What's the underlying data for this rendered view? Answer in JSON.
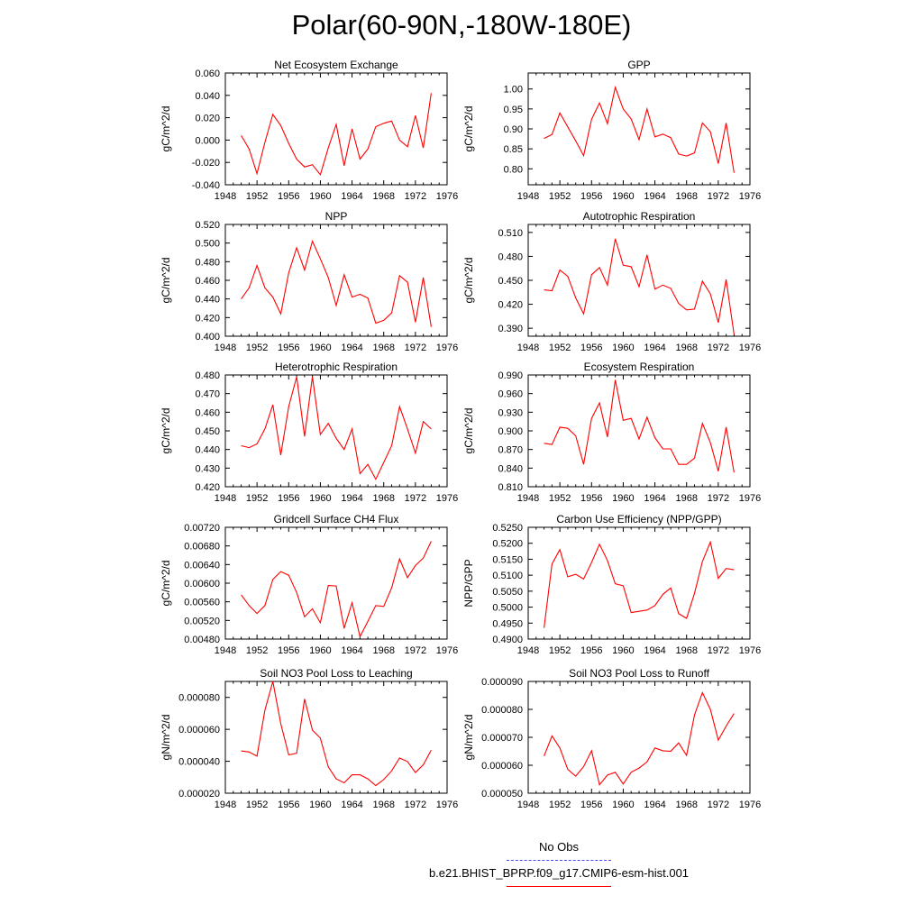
{
  "figure": {
    "title": "Polar(60-90N,-180W-180E)",
    "legend": [
      {
        "label": "No Obs",
        "color": "#4a4aff",
        "dash": true
      },
      {
        "label": "b.e21.BHIST_BPRP.f09_g17.CMIP6-esm-hist.001",
        "color": "#ff0000",
        "dash": false
      }
    ]
  },
  "chart_data": [
    {
      "type": "line",
      "title": "Net Ecosystem Exchange",
      "ylabel": "gC/m^2/d",
      "xlim": [
        1948,
        1976
      ],
      "xticks": [
        "1948",
        "1952",
        "1956",
        "1960",
        "1964",
        "1968",
        "1972",
        "1976"
      ],
      "ylim": [
        -0.04,
        0.06
      ],
      "yticks": [
        "-0.040",
        "-0.020",
        "0.000",
        "0.020",
        "0.040",
        "0.060"
      ],
      "x": [
        1950,
        1951,
        1952,
        1953,
        1954,
        1955,
        1956,
        1957,
        1958,
        1959,
        1960,
        1961,
        1962,
        1963,
        1964,
        1965,
        1966,
        1967,
        1968,
        1969,
        1970,
        1971,
        1972,
        1973,
        1974
      ],
      "series": [
        {
          "color": "#ff0000",
          "values": [
            0.004,
            -0.008,
            -0.03,
            -0.002,
            0.023,
            0.013,
            -0.003,
            -0.017,
            -0.024,
            -0.022,
            -0.031,
            -0.007,
            0.014,
            -0.023,
            0.01,
            -0.017,
            -0.008,
            0.012,
            0.015,
            0.017,
            0.0,
            -0.006,
            0.022,
            -0.007,
            0.042
          ]
        }
      ]
    },
    {
      "type": "line",
      "title": "GPP",
      "ylabel": "gC/m^2/d",
      "xlim": [
        1948,
        1976
      ],
      "xticks": [
        "1948",
        "1952",
        "1956",
        "1960",
        "1964",
        "1968",
        "1972",
        "1976"
      ],
      "ylim": [
        0.76,
        1.04
      ],
      "yticks": [
        "0.80",
        "0.85",
        "0.90",
        "0.95",
        "1.00"
      ],
      "x": [
        1950,
        1951,
        1952,
        1953,
        1954,
        1955,
        1956,
        1957,
        1958,
        1959,
        1960,
        1961,
        1962,
        1963,
        1964,
        1965,
        1966,
        1967,
        1968,
        1969,
        1970,
        1971,
        1972,
        1973,
        1974
      ],
      "series": [
        {
          "color": "#ff0000",
          "values": [
            0.876,
            0.886,
            0.94,
            0.905,
            0.87,
            0.833,
            0.924,
            0.965,
            0.913,
            1.004,
            0.95,
            0.925,
            0.873,
            0.95,
            0.88,
            0.887,
            0.878,
            0.837,
            0.832,
            0.84,
            0.915,
            0.893,
            0.813,
            0.915,
            0.79
          ]
        }
      ]
    },
    {
      "type": "line",
      "title": "NPP",
      "ylabel": "gC/m^2/d",
      "xlim": [
        1948,
        1976
      ],
      "xticks": [
        "1948",
        "1952",
        "1956",
        "1960",
        "1964",
        "1968",
        "1972",
        "1976"
      ],
      "ylim": [
        0.4,
        0.52
      ],
      "yticks": [
        "0.400",
        "0.420",
        "0.440",
        "0.460",
        "0.480",
        "0.500",
        "0.520"
      ],
      "x": [
        1950,
        1951,
        1952,
        1953,
        1954,
        1955,
        1956,
        1957,
        1958,
        1959,
        1960,
        1961,
        1962,
        1963,
        1964,
        1965,
        1966,
        1967,
        1968,
        1969,
        1970,
        1971,
        1972,
        1973,
        1974
      ],
      "series": [
        {
          "color": "#ff0000",
          "values": [
            0.44,
            0.452,
            0.476,
            0.452,
            0.442,
            0.424,
            0.468,
            0.495,
            0.471,
            0.502,
            0.483,
            0.463,
            0.433,
            0.466,
            0.442,
            0.445,
            0.441,
            0.414,
            0.417,
            0.425,
            0.465,
            0.458,
            0.415,
            0.463,
            0.41
          ]
        }
      ]
    },
    {
      "type": "line",
      "title": "Autotrophic Respiration",
      "ylabel": "gC/m^2/d",
      "xlim": [
        1948,
        1976
      ],
      "xticks": [
        "1948",
        "1952",
        "1956",
        "1960",
        "1964",
        "1968",
        "1972",
        "1976"
      ],
      "ylim": [
        0.38,
        0.52
      ],
      "yticks": [
        "0.390",
        "0.420",
        "0.450",
        "0.480",
        "0.510"
      ],
      "x": [
        1950,
        1951,
        1952,
        1953,
        1954,
        1955,
        1956,
        1957,
        1958,
        1959,
        1960,
        1961,
        1962,
        1963,
        1964,
        1965,
        1966,
        1967,
        1968,
        1969,
        1970,
        1971,
        1972,
        1973,
        1974
      ],
      "series": [
        {
          "color": "#ff0000",
          "values": [
            0.438,
            0.437,
            0.463,
            0.455,
            0.428,
            0.408,
            0.457,
            0.466,
            0.444,
            0.502,
            0.469,
            0.467,
            0.442,
            0.482,
            0.439,
            0.444,
            0.44,
            0.421,
            0.413,
            0.414,
            0.449,
            0.433,
            0.397,
            0.451,
            0.382
          ]
        }
      ]
    },
    {
      "type": "line",
      "title": "Heterotrophic Respiration",
      "ylabel": "gC/m^2/d",
      "xlim": [
        1948,
        1976
      ],
      "xticks": [
        "1948",
        "1952",
        "1956",
        "1960",
        "1964",
        "1968",
        "1972",
        "1976"
      ],
      "ylim": [
        0.42,
        0.48
      ],
      "yticks": [
        "0.420",
        "0.430",
        "0.440",
        "0.450",
        "0.460",
        "0.470",
        "0.480"
      ],
      "x": [
        1950,
        1951,
        1952,
        1953,
        1954,
        1955,
        1956,
        1957,
        1958,
        1959,
        1960,
        1961,
        1962,
        1963,
        1964,
        1965,
        1966,
        1967,
        1968,
        1969,
        1970,
        1971,
        1972,
        1973,
        1974
      ],
      "series": [
        {
          "color": "#ff0000",
          "values": [
            0.442,
            0.441,
            0.443,
            0.451,
            0.464,
            0.437,
            0.463,
            0.479,
            0.447,
            0.479,
            0.448,
            0.454,
            0.446,
            0.44,
            0.451,
            0.427,
            0.432,
            0.424,
            0.433,
            0.442,
            0.463,
            0.451,
            0.438,
            0.455,
            0.451
          ]
        }
      ]
    },
    {
      "type": "line",
      "title": "Ecosystem Respiration",
      "ylabel": "gC/m^2/d",
      "xlim": [
        1948,
        1976
      ],
      "xticks": [
        "1948",
        "1952",
        "1956",
        "1960",
        "1964",
        "1968",
        "1972",
        "1976"
      ],
      "ylim": [
        0.81,
        0.99
      ],
      "yticks": [
        "0.810",
        "0.840",
        "0.870",
        "0.900",
        "0.930",
        "0.960",
        "0.990"
      ],
      "x": [
        1950,
        1951,
        1952,
        1953,
        1954,
        1955,
        1956,
        1957,
        1958,
        1959,
        1960,
        1961,
        1962,
        1963,
        1964,
        1965,
        1966,
        1967,
        1968,
        1969,
        1970,
        1971,
        1972,
        1973,
        1974
      ],
      "series": [
        {
          "color": "#ff0000",
          "values": [
            0.88,
            0.878,
            0.906,
            0.904,
            0.892,
            0.846,
            0.92,
            0.945,
            0.89,
            0.982,
            0.917,
            0.92,
            0.887,
            0.922,
            0.889,
            0.871,
            0.871,
            0.846,
            0.846,
            0.856,
            0.912,
            0.881,
            0.835,
            0.906,
            0.833
          ]
        }
      ]
    },
    {
      "type": "line",
      "title": "Gridcell Surface CH4 Flux",
      "ylabel": "gC/m^2/d",
      "xlim": [
        1948,
        1976
      ],
      "xticks": [
        "1948",
        "1952",
        "1956",
        "1960",
        "1964",
        "1968",
        "1972",
        "1976"
      ],
      "ylim": [
        0.0048,
        0.0072
      ],
      "yticks": [
        "0.00480",
        "0.00520",
        "0.00560",
        "0.00600",
        "0.00640",
        "0.00680",
        "0.00720"
      ],
      "x": [
        1950,
        1951,
        1952,
        1953,
        1954,
        1955,
        1956,
        1957,
        1958,
        1959,
        1960,
        1961,
        1962,
        1963,
        1964,
        1965,
        1966,
        1967,
        1968,
        1969,
        1970,
        1971,
        1972,
        1973,
        1974
      ],
      "series": [
        {
          "color": "#ff0000",
          "values": [
            0.00575,
            0.00552,
            0.00535,
            0.00552,
            0.00608,
            0.00625,
            0.00617,
            0.0058,
            0.00528,
            0.00545,
            0.00515,
            0.00595,
            0.00594,
            0.00503,
            0.00558,
            0.00485,
            0.00518,
            0.00552,
            0.0055,
            0.0059,
            0.00652,
            0.00612,
            0.00638,
            0.00654,
            0.0069
          ]
        }
      ]
    },
    {
      "type": "line",
      "title": "Carbon Use Efficiency (NPP/GPP)",
      "ylabel": "NPP/GPP",
      "xlim": [
        1948,
        1976
      ],
      "xticks": [
        "1948",
        "1952",
        "1956",
        "1960",
        "1964",
        "1968",
        "1972",
        "1976"
      ],
      "ylim": [
        0.49,
        0.525
      ],
      "yticks": [
        "0.4900",
        "0.4950",
        "0.5000",
        "0.5050",
        "0.5100",
        "0.5150",
        "0.5200",
        "0.5250"
      ],
      "x": [
        1950,
        1951,
        1952,
        1953,
        1954,
        1955,
        1956,
        1957,
        1958,
        1959,
        1960,
        1961,
        1962,
        1963,
        1964,
        1965,
        1966,
        1967,
        1968,
        1969,
        1970,
        1971,
        1972,
        1973,
        1974
      ],
      "series": [
        {
          "color": "#ff0000",
          "values": [
            0.4935,
            0.5135,
            0.518,
            0.5095,
            0.5103,
            0.5088,
            0.514,
            0.5197,
            0.5146,
            0.5073,
            0.5067,
            0.4983,
            0.4987,
            0.4991,
            0.5005,
            0.504,
            0.506,
            0.498,
            0.4965,
            0.5043,
            0.5143,
            0.5204,
            0.509,
            0.5121,
            0.5117
          ]
        }
      ]
    },
    {
      "type": "line",
      "title": "Soil NO3 Pool Loss to Leaching",
      "ylabel": "gN/m^2/d",
      "xlim": [
        1948,
        1976
      ],
      "xticks": [
        "1948",
        "1952",
        "1956",
        "1960",
        "1964",
        "1968",
        "1972",
        "1976"
      ],
      "ylim": [
        2e-05,
        9e-05
      ],
      "yticks": [
        "0.000020",
        "0.000040",
        "0.000060",
        "0.000080"
      ],
      "x": [
        1950,
        1951,
        1952,
        1953,
        1954,
        1955,
        1956,
        1957,
        1958,
        1959,
        1960,
        1961,
        1962,
        1963,
        1964,
        1965,
        1966,
        1967,
        1968,
        1969,
        1970,
        1971,
        1972,
        1973,
        1974
      ],
      "series": [
        {
          "color": "#ff0000",
          "values": [
            4.65e-05,
            4.58e-05,
            4.32e-05,
            7.2e-05,
            9e-05,
            6.35e-05,
            4.4e-05,
            4.5e-05,
            7.9e-05,
            5.95e-05,
            5.45e-05,
            3.65e-05,
            2.9e-05,
            2.65e-05,
            3.15e-05,
            3.15e-05,
            2.9e-05,
            2.48e-05,
            2.85e-05,
            3.4e-05,
            4.2e-05,
            3.98e-05,
            3.3e-05,
            3.78e-05,
            4.7e-05
          ]
        }
      ]
    },
    {
      "type": "line",
      "title": "Soil NO3 Pool Loss to Runoff",
      "ylabel": "gN/m^2/d",
      "xlim": [
        1948,
        1976
      ],
      "xticks": [
        "1948",
        "1952",
        "1956",
        "1960",
        "1964",
        "1968",
        "1972",
        "1976"
      ],
      "ylim": [
        5e-05,
        9e-05
      ],
      "yticks": [
        "0.000050",
        "0.000060",
        "0.000070",
        "0.000080",
        "0.000090"
      ],
      "x": [
        1950,
        1951,
        1952,
        1953,
        1954,
        1955,
        1956,
        1957,
        1958,
        1959,
        1960,
        1961,
        1962,
        1963,
        1964,
        1965,
        1966,
        1967,
        1968,
        1969,
        1970,
        1971,
        1972,
        1973,
        1974
      ],
      "series": [
        {
          "color": "#ff0000",
          "values": [
            6.33e-05,
            7.05e-05,
            6.62e-05,
            5.85e-05,
            5.61e-05,
            5.95e-05,
            6.52e-05,
            5.3e-05,
            5.65e-05,
            5.75e-05,
            5.33e-05,
            5.75e-05,
            5.9e-05,
            6.12e-05,
            6.62e-05,
            6.52e-05,
            6.5e-05,
            6.8e-05,
            6.35e-05,
            7.8e-05,
            8.6e-05,
            8e-05,
            6.9e-05,
            7.4e-05,
            7.85e-05
          ]
        }
      ]
    }
  ]
}
